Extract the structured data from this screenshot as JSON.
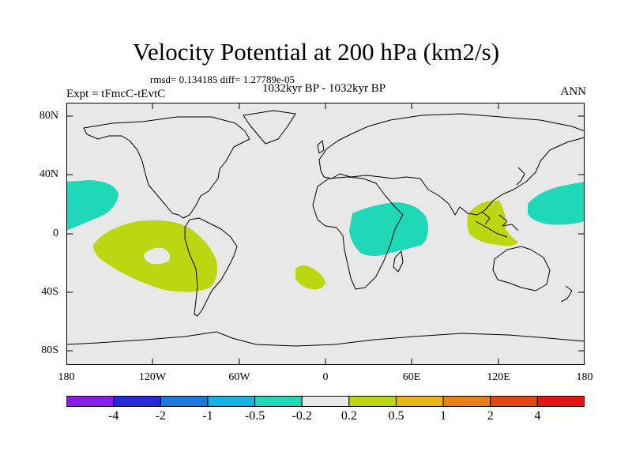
{
  "title": "Velocity Potential at 200 hPa (km2/s)",
  "stats": "rmsd= 0.134185 diff= 1.27789e-05",
  "subtitle": "1032kyr BP - 1032kyr BP",
  "expt": "Expt = tFmcC-tEvtC",
  "season": "ANN",
  "map": {
    "lat_range": [
      -90,
      90
    ],
    "lon_range": [
      -180,
      180
    ],
    "y_ticks": [
      "80N",
      "40N",
      "0",
      "40S",
      "80S"
    ],
    "x_ticks": [
      "180",
      "120W",
      "60W",
      "0",
      "60E",
      "120E",
      "180"
    ],
    "background_color": "#e8e8e8",
    "regions": [
      {
        "name": "central-north-pacific-negative",
        "level": "-0.5 to -0.2",
        "color": "#1ed8b8"
      },
      {
        "name": "east-pacific-positive",
        "level": "0.2 to 0.5",
        "color": "#bcd60f"
      },
      {
        "name": "south-atlantic-positive",
        "level": "0.2 to 0.5",
        "color": "#bcd60f"
      },
      {
        "name": "east-africa-negative",
        "level": "-0.5 to -0.2",
        "color": "#1ed8b8"
      },
      {
        "name": "maritime-continent-positive",
        "level": "0.2 to 0.5",
        "color": "#bcd60f"
      },
      {
        "name": "west-pacific-negative",
        "level": "-0.5 to -0.2",
        "color": "#1ed8b8"
      }
    ]
  },
  "colorbar": {
    "labels": [
      "-4",
      "-2",
      "-1",
      "-0.5",
      "-0.2",
      "0.2",
      "0.5",
      "1",
      "2",
      "4"
    ],
    "colors": [
      "#8a1ee6",
      "#2828dc",
      "#1e78dc",
      "#14b4e6",
      "#1ed8b8",
      "#e8e8e8",
      "#bcd60f",
      "#e6b414",
      "#e68214",
      "#e64614",
      "#e61414"
    ]
  }
}
